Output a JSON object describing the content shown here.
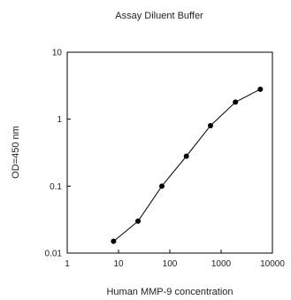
{
  "chart_data": {
    "type": "line",
    "title": "Assay Diluent Buffer",
    "xlabel": "Human MMP-9 concentration",
    "ylabel": "OD=450 nm",
    "x_scale": "log",
    "y_scale": "log",
    "xlim": [
      1,
      10000
    ],
    "ylim": [
      0.01,
      10
    ],
    "x_ticks": [
      "1",
      "10",
      "100",
      "1000",
      "10000"
    ],
    "y_ticks": [
      "10",
      "1",
      "0.1",
      "0.01"
    ],
    "grid": false,
    "series": [
      {
        "x": [
          8,
          24,
          70,
          210,
          620,
          1900,
          5800
        ],
        "y": [
          0.015,
          0.03,
          0.1,
          0.28,
          0.8,
          1.8,
          2.8
        ],
        "marker": "circle",
        "color": "#000000"
      }
    ]
  }
}
